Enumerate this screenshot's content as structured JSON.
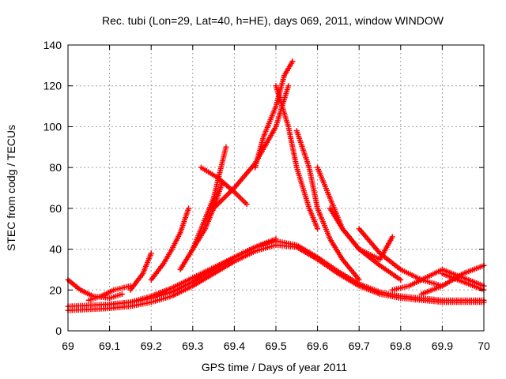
{
  "chart_data": {
    "type": "scatter",
    "title": "Rec. tubi (Lon=29, Lat=40, h=HE), days 069, 2011, window WINDOW",
    "xlabel": "GPS time / Days of year 2011",
    "ylabel": "STEC from codg / TECUs",
    "xlim": [
      69,
      70
    ],
    "ylim": [
      0,
      140
    ],
    "xticks": [
      69,
      69.1,
      69.2,
      69.3,
      69.4,
      69.5,
      69.6,
      69.7,
      69.8,
      69.9,
      70
    ],
    "xtick_labels": [
      "69",
      "69.1",
      "69.2",
      "69.3",
      "69.4",
      "69.5",
      "69.6",
      "69.7",
      "69.8",
      "69.9",
      "70"
    ],
    "yticks": [
      0,
      20,
      40,
      60,
      80,
      100,
      120,
      140
    ],
    "ytick_labels": [
      "0",
      "20",
      "40",
      "60",
      "80",
      "100",
      "120",
      "140"
    ],
    "grid": true,
    "marker": "+",
    "marker_color": "#ff0000",
    "series": [
      {
        "x": [
          69.0,
          69.05,
          69.1,
          69.15,
          69.2,
          69.25,
          69.3,
          69.35,
          69.4,
          69.45,
          69.5,
          69.55,
          69.6,
          69.65,
          69.7,
          69.75,
          69.8,
          69.85,
          69.9,
          69.95,
          70.0
        ],
        "values": [
          12,
          12.5,
          13,
          14,
          16,
          19,
          24,
          30,
          36,
          41,
          44,
          42,
          36,
          29,
          23,
          19,
          17,
          16,
          15,
          15,
          15
        ]
      },
      {
        "x": [
          69.0,
          69.05,
          69.1,
          69.15,
          69.2,
          69.25,
          69.3,
          69.35,
          69.4,
          69.45,
          69.5,
          69.55,
          69.6,
          69.65,
          69.7,
          69.75,
          69.8,
          69.85,
          69.9,
          69.95,
          70.0
        ],
        "values": [
          10,
          10.5,
          11,
          12,
          14,
          17,
          22,
          28,
          34,
          39,
          42,
          41,
          35,
          28,
          22,
          18,
          16,
          15,
          14,
          14,
          14
        ]
      },
      {
        "x": [
          69.0,
          69.03,
          69.06,
          69.1,
          69.13
        ],
        "values": [
          25,
          20,
          17,
          16,
          18
        ]
      },
      {
        "x": [
          69.05,
          69.08,
          69.11,
          69.15
        ],
        "values": [
          15,
          17,
          20,
          22
        ]
      },
      {
        "x": [
          69.1,
          69.15,
          69.2,
          69.25,
          69.3,
          69.35,
          69.4,
          69.45,
          69.5
        ],
        "values": [
          13,
          14,
          17,
          21,
          26,
          31,
          36,
          41,
          45
        ]
      },
      {
        "x": [
          69.15,
          69.18,
          69.2
        ],
        "values": [
          20,
          28,
          38
        ]
      },
      {
        "x": [
          69.2,
          69.23,
          69.25,
          69.27,
          69.29
        ],
        "values": [
          25,
          33,
          40,
          48,
          60
        ]
      },
      {
        "x": [
          69.27,
          69.3,
          69.33,
          69.35,
          69.37
        ],
        "values": [
          30,
          40,
          50,
          60,
          72
        ]
      },
      {
        "x": [
          69.3,
          69.33,
          69.35,
          69.38
        ],
        "values": [
          40,
          55,
          65,
          90
        ]
      },
      {
        "x": [
          69.32,
          69.36,
          69.4,
          69.43
        ],
        "values": [
          80,
          75,
          68,
          62
        ]
      },
      {
        "x": [
          69.35,
          69.4,
          69.45,
          69.5,
          69.53
        ],
        "values": [
          60,
          70,
          82,
          100,
          120
        ]
      },
      {
        "x": [
          69.45,
          69.47,
          69.5,
          69.52,
          69.54
        ],
        "values": [
          80,
          95,
          110,
          125,
          132
        ]
      },
      {
        "x": [
          69.5,
          69.53,
          69.55,
          69.58,
          69.6
        ],
        "values": [
          120,
          100,
          80,
          60,
          50
        ]
      },
      {
        "x": [
          69.55,
          69.58,
          69.6,
          69.63,
          69.66,
          69.7
        ],
        "values": [
          98,
          80,
          60,
          45,
          35,
          25
        ]
      },
      {
        "x": [
          69.6,
          69.63,
          69.66,
          69.7,
          69.75,
          69.8
        ],
        "values": [
          80,
          65,
          50,
          40,
          32,
          25
        ]
      },
      {
        "x": [
          69.63,
          69.66,
          69.7,
          69.75,
          69.78
        ],
        "values": [
          60,
          50,
          40,
          35,
          46
        ]
      },
      {
        "x": [
          69.7,
          69.75,
          69.8,
          69.85,
          69.9
        ],
        "values": [
          50,
          38,
          30,
          25,
          22
        ]
      },
      {
        "x": [
          69.78,
          69.82,
          69.86,
          69.9,
          69.95,
          70.0
        ],
        "values": [
          20,
          22,
          26,
          30,
          26,
          22
        ]
      },
      {
        "x": [
          69.85,
          69.9,
          69.95,
          70.0
        ],
        "values": [
          18,
          22,
          28,
          32
        ]
      },
      {
        "x": [
          69.9,
          69.95,
          70.0
        ],
        "values": [
          28,
          24,
          20
        ]
      }
    ]
  }
}
